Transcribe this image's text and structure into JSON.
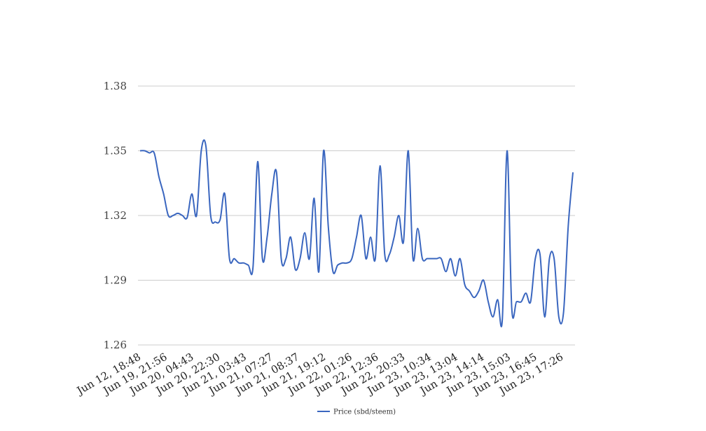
{
  "chart_data": {
    "type": "line",
    "title": "",
    "xlabel": "",
    "ylabel": "",
    "ylim": [
      1.26,
      1.38
    ],
    "y_ticks": [
      "1.38",
      "1.35",
      "1.32",
      "1.29",
      "1.26"
    ],
    "y_tick_values": [
      1.38,
      1.35,
      1.32,
      1.29,
      1.26
    ],
    "grid": "horizontal",
    "legend_position": "bottom",
    "x_tick_labels": [
      "Jun 12, 18:48",
      "Jun 19, 21:56",
      "Jun 20, 04:43",
      "Jun 20, 22:30",
      "Jun 21, 03:43",
      "Jun 21, 07:27",
      "Jun 21, 08:37",
      "Jun 21, 19:12",
      "Jun 22, 01:26",
      "Jun 22, 12:36",
      "Jun 22, 20:33",
      "Jun 23, 10:34",
      "Jun 23, 13:04",
      "Jun 23, 14:14",
      "Jun 23, 15:03",
      "Jun 23, 16:45",
      "Jun 23, 17:26"
    ],
    "series": [
      {
        "name": "Price (sbd/steem)",
        "color": "#3a66bf",
        "values": [
          1.35,
          1.35,
          1.349,
          1.349,
          1.338,
          1.33,
          1.32,
          1.32,
          1.321,
          1.32,
          1.319,
          1.33,
          1.32,
          1.35,
          1.352,
          1.32,
          1.317,
          1.318,
          1.33,
          1.3,
          1.3,
          1.298,
          1.298,
          1.297,
          1.296,
          1.345,
          1.3,
          1.31,
          1.33,
          1.34,
          1.3,
          1.3,
          1.31,
          1.295,
          1.3,
          1.312,
          1.3,
          1.328,
          1.294,
          1.35,
          1.315,
          1.294,
          1.297,
          1.298,
          1.298,
          1.3,
          1.31,
          1.32,
          1.3,
          1.31,
          1.3,
          1.343,
          1.302,
          1.302,
          1.31,
          1.32,
          1.308,
          1.35,
          1.3,
          1.314,
          1.3,
          1.3,
          1.3,
          1.3,
          1.3,
          1.294,
          1.3,
          1.292,
          1.3,
          1.288,
          1.285,
          1.282,
          1.285,
          1.29,
          1.28,
          1.273,
          1.281,
          1.272,
          1.35,
          1.277,
          1.28,
          1.28,
          1.284,
          1.28,
          1.3,
          1.302,
          1.273,
          1.3,
          1.3,
          1.273,
          1.275,
          1.315,
          1.34
        ]
      }
    ]
  }
}
